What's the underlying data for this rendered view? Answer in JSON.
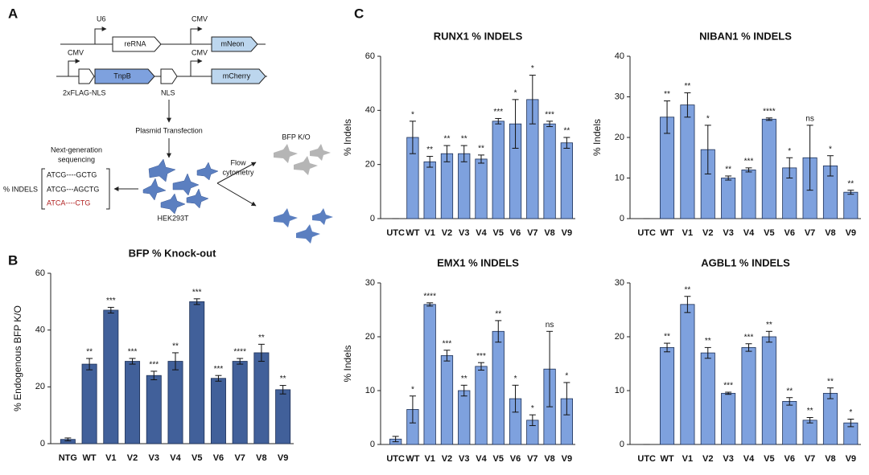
{
  "panel_labels": [
    "A",
    "B",
    "C"
  ],
  "diagram": {
    "promoters": [
      "U6",
      "CMV",
      "CMV",
      "CMV"
    ],
    "boxes": [
      "reRNA",
      "mNeon",
      "TnpB",
      "mCherry"
    ],
    "tags": [
      "2xFLAG-NLS",
      "NLS"
    ],
    "step1": "Plasmid Transfection",
    "ngs": [
      "Next-generation",
      "sequencing"
    ],
    "indels_label": "% INDELS",
    "sequences": [
      "ATCG----GCTG",
      "ATCG---AGCTG",
      "ATCA----CTG"
    ],
    "cell_line": "HEK293T",
    "flow": [
      "Flow",
      "cytometry"
    ],
    "bfp": "BFP K/O"
  },
  "chart_data": [
    {
      "type": "bar",
      "title": "BFP % Knock-out",
      "y_label": "% Endogenous BFP K/O",
      "color": "#41609a",
      "categories": [
        "NTG",
        "WT",
        "V1",
        "V2",
        "V3",
        "V4",
        "V5",
        "V6",
        "V7",
        "V8",
        "V9"
      ],
      "values": [
        1.5,
        28,
        47,
        29,
        24,
        29,
        50,
        23,
        29,
        32,
        19
      ],
      "errors": [
        0.5,
        2,
        1,
        1,
        1.5,
        3,
        1,
        1,
        1,
        3,
        1.5
      ],
      "annotations": [
        null,
        "**",
        "***",
        "***",
        "***",
        "**",
        "***",
        "***",
        "****",
        "**",
        "**"
      ],
      "ylim": [
        0,
        60
      ],
      "yticks": [
        0,
        20,
        40,
        60
      ]
    },
    {
      "type": "bar",
      "title": "RUNX1 % INDELS",
      "y_label": "% Indels",
      "color": "#7ea1de",
      "categories": [
        "UTC",
        "WT",
        "V1",
        "V2",
        "V3",
        "V4",
        "V5",
        "V6",
        "V7",
        "V8",
        "V9"
      ],
      "values": [
        0,
        30,
        21,
        24,
        24,
        22,
        36,
        35,
        44,
        35,
        28
      ],
      "errors": [
        0,
        6,
        2,
        3,
        3,
        1.5,
        1,
        9,
        9,
        1,
        2
      ],
      "annotations": [
        null,
        "*",
        "**",
        "**",
        "**",
        "**",
        "***",
        "*",
        "*",
        "***",
        "**"
      ],
      "ylim": [
        0,
        60
      ],
      "yticks": [
        0,
        20,
        40,
        60
      ]
    },
    {
      "type": "bar",
      "title": "NIBAN1 % INDELS",
      "y_label": "% Indels",
      "color": "#7ea1de",
      "categories": [
        "UTC",
        "WT",
        "V1",
        "V2",
        "V3",
        "V4",
        "V5",
        "V6",
        "V7",
        "V8",
        "V9"
      ],
      "values": [
        0,
        25,
        28,
        17,
        10,
        12,
        24.5,
        12.5,
        15,
        13,
        6.5
      ],
      "errors": [
        0,
        4,
        3,
        6,
        0.5,
        0.5,
        0.3,
        2.5,
        8,
        2.5,
        0.5
      ],
      "annotations": [
        null,
        "**",
        "**",
        "*",
        "**",
        "***",
        "****",
        "*",
        "ns",
        "*",
        "**"
      ],
      "ylim": [
        0,
        40
      ],
      "yticks": [
        0,
        10,
        20,
        30,
        40
      ]
    },
    {
      "type": "bar",
      "title": "EMX1 % INDELS",
      "y_label": "% Indels",
      "color": "#7ea1de",
      "categories": [
        "UTC",
        "WT",
        "V1",
        "V2",
        "V3",
        "V4",
        "V5",
        "V6",
        "V7",
        "V8",
        "V9"
      ],
      "values": [
        1,
        6.5,
        26,
        16.5,
        10,
        14.5,
        21,
        8.5,
        4.5,
        14,
        8.5
      ],
      "errors": [
        0.5,
        2.5,
        0.3,
        1,
        1,
        0.7,
        2,
        2.5,
        1,
        7,
        3
      ],
      "annotations": [
        null,
        "*",
        "****",
        "***",
        "**",
        "***",
        "**",
        "*",
        "*",
        "ns",
        "*"
      ],
      "ylim": [
        0,
        30
      ],
      "yticks": [
        0,
        10,
        20,
        30
      ]
    },
    {
      "type": "bar",
      "title": "AGBL1  % INDELS",
      "color": "#7ea1de",
      "categories": [
        "UTC",
        "WT",
        "V1",
        "V2",
        "V3",
        "V4",
        "V5",
        "V6",
        "V7",
        "V8",
        "V9"
      ],
      "values": [
        0,
        18,
        26,
        17,
        9.5,
        18,
        20,
        8,
        4.5,
        9.5,
        4
      ],
      "errors": [
        0,
        0.8,
        1.5,
        1,
        0.2,
        0.7,
        1,
        0.7,
        0.5,
        1,
        0.7
      ],
      "annotations": [
        null,
        "**",
        "**",
        "**",
        "***",
        "***",
        "**",
        "**",
        "**",
        "**",
        "*"
      ],
      "ylim": [
        0,
        30
      ],
      "yticks": [
        0,
        10,
        20,
        30
      ]
    }
  ]
}
